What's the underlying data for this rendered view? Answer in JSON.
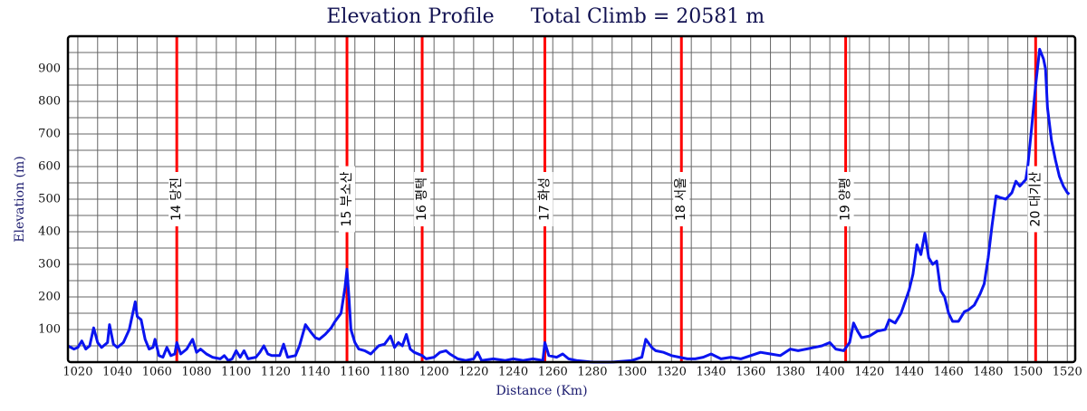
{
  "chart_data": {
    "type": "line",
    "title": "Elevation Profile",
    "subtitle": "Total Climb = 20581 m",
    "x_label": "Distance (Km)",
    "y_label": "Elevation (m)",
    "xlim": [
      1015,
      1524
    ],
    "ylim": [
      0,
      1000
    ],
    "xticks": [
      1020,
      1040,
      1060,
      1080,
      1100,
      1120,
      1140,
      1160,
      1180,
      1200,
      1220,
      1240,
      1260,
      1280,
      1300,
      1320,
      1340,
      1360,
      1380,
      1400,
      1420,
      1440,
      1460,
      1480,
      1500,
      1520
    ],
    "x_minor_ticks": [
      1030,
      1050,
      1070,
      1090,
      1110,
      1130,
      1150,
      1170,
      1190,
      1210,
      1230,
      1250,
      1270,
      1290,
      1310,
      1330,
      1350,
      1370,
      1390,
      1410,
      1430,
      1450,
      1470,
      1490,
      1510
    ],
    "yticks": [
      100,
      200,
      300,
      400,
      500,
      600,
      700,
      800,
      900
    ],
    "y_minor_ticks": [
      50,
      150,
      250,
      350,
      450,
      550,
      650,
      750,
      850,
      950
    ],
    "grid": true,
    "color": "#0a14f0",
    "marker_color": "#ff0000",
    "markers": [
      {
        "x": 1070,
        "label": "14 당진"
      },
      {
        "x": 1156,
        "label": "15 부소산"
      },
      {
        "x": 1194,
        "label": "16 평택"
      },
      {
        "x": 1256,
        "label": "17 화성"
      },
      {
        "x": 1325,
        "label": "18 서울"
      },
      {
        "x": 1408,
        "label": "19 양평"
      },
      {
        "x": 1504,
        "label": "20 대기산"
      }
    ],
    "x": [
      1015,
      1018,
      1020,
      1022,
      1024,
      1026,
      1028,
      1030,
      1032,
      1035,
      1036,
      1038,
      1040,
      1043,
      1046,
      1049,
      1050,
      1052,
      1054,
      1056,
      1058,
      1059,
      1061,
      1063,
      1065,
      1067,
      1069,
      1070,
      1072,
      1075,
      1078,
      1080,
      1082,
      1085,
      1088,
      1092,
      1094,
      1096,
      1098,
      1100,
      1102,
      1104,
      1106,
      1110,
      1112,
      1114,
      1116,
      1118,
      1122,
      1124,
      1126,
      1130,
      1132,
      1135,
      1138,
      1140,
      1142,
      1145,
      1148,
      1150,
      1153,
      1155,
      1156,
      1157,
      1158,
      1160,
      1162,
      1165,
      1168,
      1172,
      1175,
      1178,
      1180,
      1182,
      1184,
      1186,
      1188,
      1190,
      1194,
      1196,
      1200,
      1203,
      1206,
      1208,
      1212,
      1216,
      1220,
      1222,
      1224,
      1230,
      1236,
      1240,
      1245,
      1250,
      1255,
      1256,
      1258,
      1262,
      1265,
      1268,
      1272,
      1280,
      1290,
      1300,
      1305,
      1307,
      1310,
      1312,
      1316,
      1320,
      1324,
      1328,
      1332,
      1336,
      1340,
      1345,
      1350,
      1355,
      1360,
      1365,
      1370,
      1375,
      1380,
      1384,
      1388,
      1392,
      1396,
      1400,
      1403,
      1407,
      1410,
      1412,
      1414,
      1416,
      1420,
      1424,
      1428,
      1430,
      1433,
      1436,
      1440,
      1442,
      1444,
      1446,
      1448,
      1450,
      1452,
      1454,
      1456,
      1458,
      1460,
      1462,
      1465,
      1468,
      1470,
      1473,
      1476,
      1478,
      1480,
      1482,
      1484,
      1486,
      1489,
      1492,
      1494,
      1496,
      1499,
      1500,
      1502,
      1504,
      1506,
      1508,
      1509,
      1510,
      1512,
      1514,
      1516,
      1518,
      1520,
      1521
    ],
    "values": [
      50,
      40,
      45,
      65,
      40,
      50,
      105,
      60,
      45,
      60,
      115,
      55,
      45,
      60,
      100,
      185,
      140,
      130,
      70,
      40,
      45,
      70,
      20,
      15,
      45,
      20,
      25,
      60,
      25,
      40,
      70,
      30,
      40,
      25,
      15,
      10,
      20,
      5,
      10,
      35,
      15,
      35,
      10,
      15,
      30,
      50,
      25,
      20,
      20,
      55,
      15,
      20,
      50,
      115,
      90,
      75,
      70,
      85,
      105,
      125,
      150,
      230,
      285,
      200,
      100,
      60,
      40,
      35,
      25,
      50,
      55,
      80,
      45,
      60,
      50,
      85,
      40,
      30,
      20,
      10,
      15,
      30,
      35,
      25,
      10,
      5,
      10,
      30,
      5,
      10,
      5,
      10,
      5,
      10,
      5,
      60,
      20,
      15,
      25,
      10,
      5,
      0,
      0,
      5,
      15,
      70,
      45,
      35,
      30,
      20,
      15,
      10,
      10,
      15,
      25,
      10,
      15,
      10,
      20,
      30,
      25,
      20,
      40,
      35,
      40,
      45,
      50,
      60,
      40,
      35,
      60,
      120,
      95,
      75,
      80,
      95,
      100,
      130,
      120,
      150,
      220,
      270,
      360,
      330,
      395,
      320,
      300,
      310,
      220,
      200,
      150,
      125,
      125,
      155,
      160,
      175,
      210,
      240,
      320,
      420,
      510,
      505,
      500,
      520,
      555,
      540,
      560,
      600,
      720,
      850,
      960,
      930,
      900,
      780,
      680,
      620,
      570,
      540,
      520,
      515
    ]
  }
}
